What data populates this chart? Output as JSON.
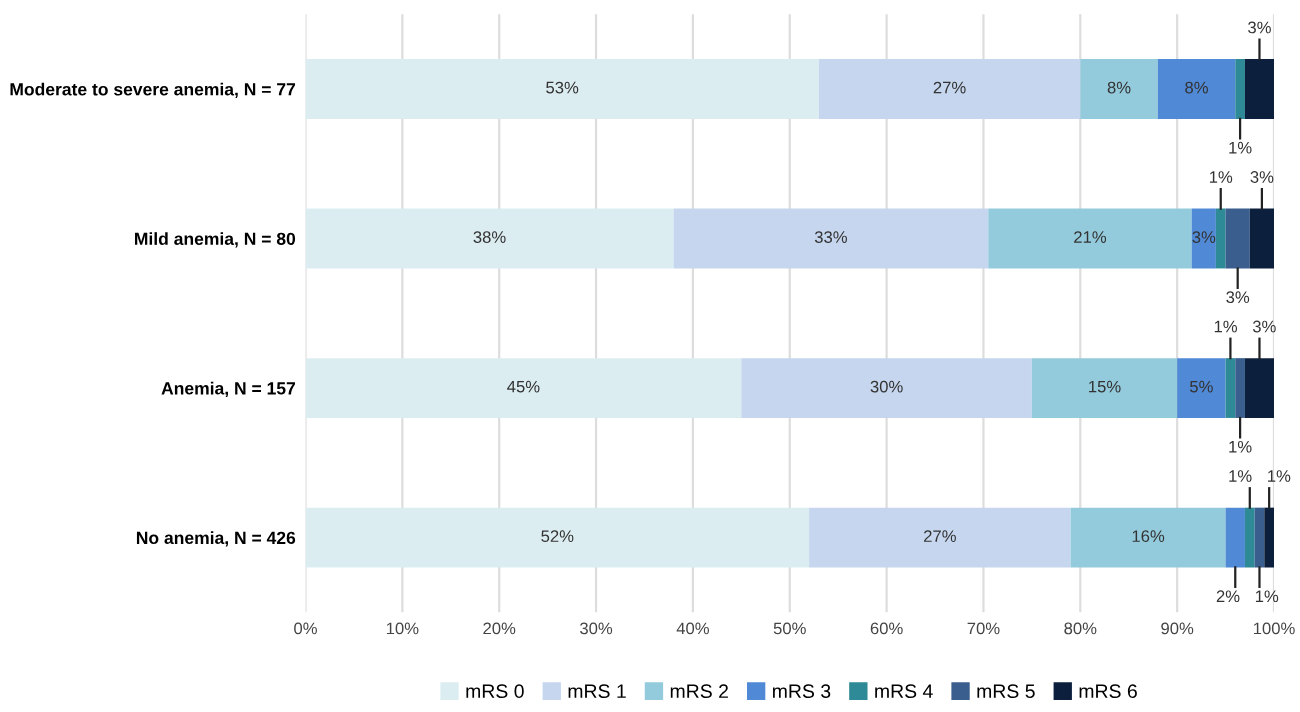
{
  "chart_data": {
    "type": "bar",
    "orientation": "horizontal",
    "stacked": true,
    "categories": [
      "Moderate to severe anemia, N = 77",
      "Mild anemia, N = 80",
      "Anemia, N = 157",
      "No anemia, N = 426"
    ],
    "series": [
      {
        "name": "mRS 0",
        "color": "#dcedf2",
        "values": [
          53,
          38,
          45,
          52
        ],
        "value_labels": [
          "53%",
          "38%",
          "45%",
          "52%"
        ]
      },
      {
        "name": "mRS 1",
        "color": "#c5d6ee",
        "values": [
          27,
          32.5,
          30,
          27
        ],
        "value_labels": [
          "27%",
          "33%",
          "30%",
          "27%"
        ]
      },
      {
        "name": "mRS 2",
        "color": "#93cbdd",
        "values": [
          8,
          21,
          15,
          16
        ],
        "value_labels": [
          "8%",
          "21%",
          "15%",
          "16%"
        ]
      },
      {
        "name": "mRS 3",
        "color": "#5089d6",
        "values": [
          8,
          2.5,
          5,
          2
        ],
        "value_labels": [
          "8%",
          "3%",
          "5%",
          "2%"
        ]
      },
      {
        "name": "mRS 4",
        "color": "#2e8a96",
        "values": [
          1,
          1,
          1,
          1
        ],
        "value_labels": [
          "1%",
          "1%",
          "1%",
          "1%"
        ]
      },
      {
        "name": "mRS 5",
        "color": "#3a5f8f",
        "values": [
          0,
          2.5,
          1,
          1
        ],
        "value_labels": [
          null,
          "3%",
          "1%",
          "1%"
        ]
      },
      {
        "name": "mRS 6",
        "color": "#0c1f3d",
        "values": [
          3,
          2.5,
          3,
          1
        ],
        "value_labels": [
          "3%",
          "3%",
          "3%",
          "1%"
        ]
      }
    ],
    "xlim": [
      0,
      100
    ],
    "xticks": [
      {
        "value": 0,
        "label": "0%"
      },
      {
        "value": 10,
        "label": "10%"
      },
      {
        "value": 20,
        "label": "20%"
      },
      {
        "value": 30,
        "label": "30%"
      },
      {
        "value": 40,
        "label": "40%"
      },
      {
        "value": 50,
        "label": "50%"
      },
      {
        "value": 60,
        "label": "60%"
      },
      {
        "value": 70,
        "label": "70%"
      },
      {
        "value": 80,
        "label": "80%"
      },
      {
        "value": 90,
        "label": "90%"
      },
      {
        "value": 100,
        "label": "100%"
      }
    ],
    "grid": "x",
    "legend": "bottom"
  }
}
